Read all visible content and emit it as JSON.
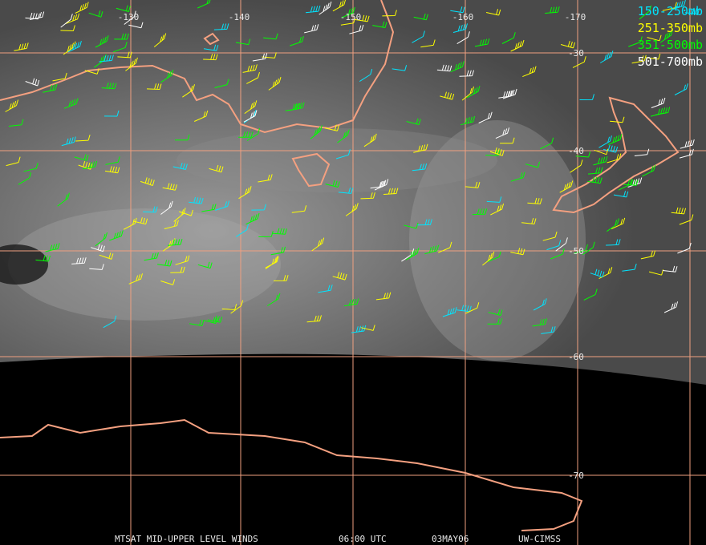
{
  "map": {
    "longitude_labels": [
      "-130",
      "-140",
      "-150",
      "-160",
      "-170"
    ],
    "latitude_labels": [
      "-30",
      "-40",
      "-50",
      "-60",
      "-70"
    ],
    "legend": [
      {
        "label": "150-250mb",
        "color": "#00e5ff"
      },
      {
        "label": "251-350mb",
        "color": "#ffff00"
      },
      {
        "label": "351-500mb",
        "color": "#00ff00"
      },
      {
        "label": "501-700mb",
        "color": "#ffffff"
      }
    ],
    "footer": {
      "product": "MTSAT MID-UPPER LEVEL WINDS",
      "time": "06:00 UTC",
      "date": "03MAY06",
      "source": "UW-CIMSS"
    }
  }
}
